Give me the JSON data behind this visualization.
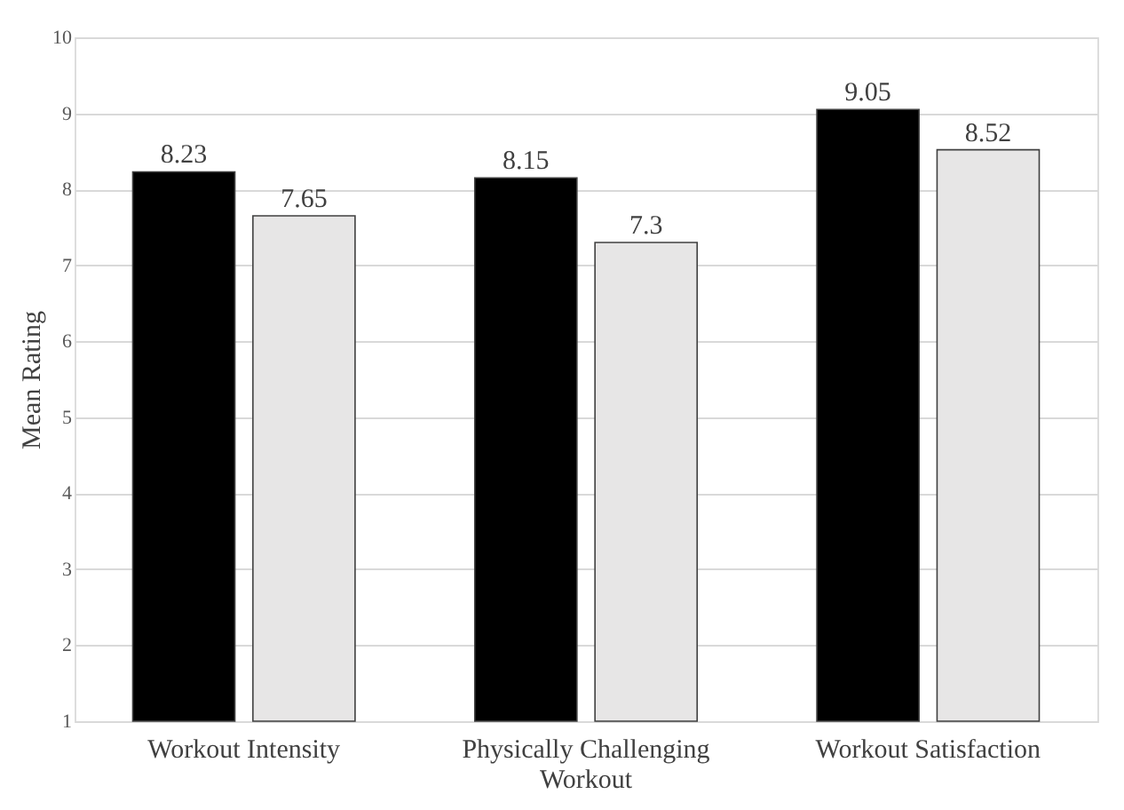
{
  "chart_data": {
    "type": "bar",
    "ylabel": "Mean Rating",
    "categories": [
      "Workout Intensity",
      "Physically Challenging Workout",
      "Workout Satisfaction"
    ],
    "series": [
      {
        "color": "#000000",
        "values": [
          8.23,
          8.15,
          9.05
        ]
      },
      {
        "color": "#e7e6e6",
        "values": [
          7.65,
          7.3,
          8.52
        ]
      }
    ],
    "ylim": [
      1,
      10
    ],
    "yticks": [
      1,
      2,
      3,
      4,
      5,
      6,
      7,
      8,
      9,
      10
    ],
    "grid": "y",
    "data_labels": true
  }
}
